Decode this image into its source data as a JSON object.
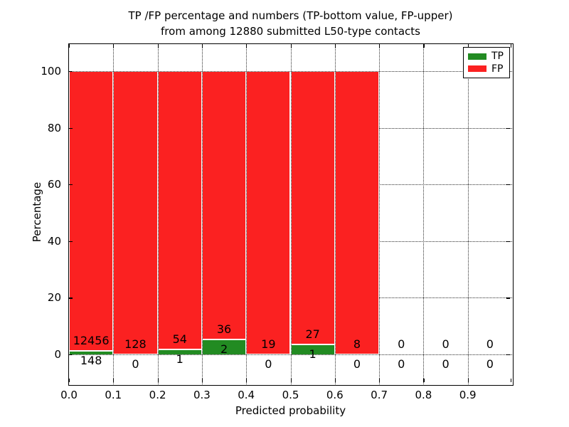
{
  "chart_data": {
    "type": "bar",
    "stacked": true,
    "title_line1": "TP /FP percentage and numbers (TP-bottom value, FP-upper)",
    "title_line2": "from among 12880 submitted L50-type contacts",
    "xlabel": "Predicted probability",
    "ylabel": "Percentage",
    "x_tick_labels": [
      "0.0",
      "0.1",
      "0.2",
      "0.3",
      "0.4",
      "0.5",
      "0.6",
      "0.7",
      "0.8",
      "0.9"
    ],
    "y_tick_values": [
      0,
      20,
      40,
      60,
      80,
      100
    ],
    "xlim": [
      0.0,
      1.0
    ],
    "ylim": [
      -10.5,
      109.5
    ],
    "bin_width": 0.1,
    "grid": "dotted",
    "legend": {
      "position": "upper right",
      "items": [
        {
          "label": "TP",
          "color": "#228b22"
        },
        {
          "label": "FP",
          "color": "#fb2121"
        }
      ]
    },
    "bins": [
      {
        "x0": 0.0,
        "x1": 0.1,
        "tp": 148,
        "fp": 12456
      },
      {
        "x0": 0.1,
        "x1": 0.2,
        "tp": 0,
        "fp": 128
      },
      {
        "x0": 0.2,
        "x1": 0.3,
        "tp": 1,
        "fp": 54
      },
      {
        "x0": 0.3,
        "x1": 0.4,
        "tp": 2,
        "fp": 36
      },
      {
        "x0": 0.4,
        "x1": 0.5,
        "tp": 0,
        "fp": 19
      },
      {
        "x0": 0.5,
        "x1": 0.6,
        "tp": 1,
        "fp": 27
      },
      {
        "x0": 0.6,
        "x1": 0.7,
        "tp": 0,
        "fp": 8
      },
      {
        "x0": 0.7,
        "x1": 0.8,
        "tp": 0,
        "fp": 0
      },
      {
        "x0": 0.8,
        "x1": 0.9,
        "tp": 0,
        "fp": 0
      },
      {
        "x0": 0.9,
        "x1": 1.0,
        "tp": 0,
        "fp": 0
      }
    ]
  }
}
